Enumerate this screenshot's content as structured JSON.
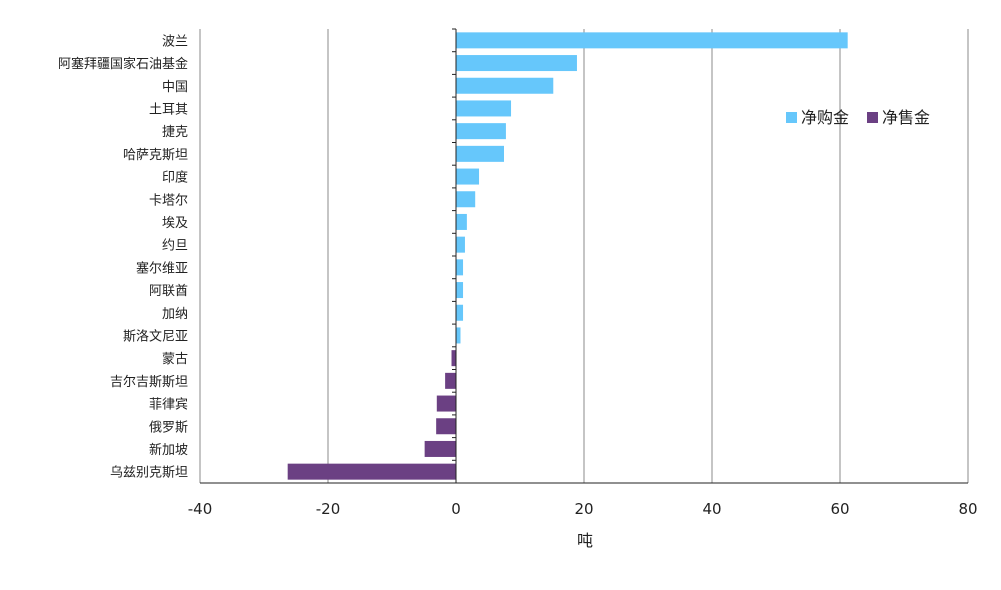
{
  "chart_data": {
    "type": "bar",
    "orientation": "horizontal",
    "categories": [
      "波兰",
      "阿塞拜疆国家石油基金",
      "中国",
      "土耳其",
      "捷克",
      "哈萨克斯坦",
      "印度",
      "卡塔尔",
      "埃及",
      "约旦",
      "塞尔维亚",
      "阿联酋",
      "加纳",
      "斯洛文尼亚",
      "蒙古",
      "吉尔吉斯斯坦",
      "菲律宾",
      "俄罗斯",
      "新加坡",
      "乌兹别克斯坦"
    ],
    "values": [
      61.2,
      18.9,
      15.2,
      8.6,
      7.8,
      7.5,
      3.6,
      3.0,
      1.7,
      1.4,
      1.1,
      1.1,
      1.1,
      0.7,
      -0.7,
      -1.7,
      -3.0,
      -3.1,
      -4.9,
      -26.3
    ],
    "series": [
      {
        "name": "净购金",
        "color": "#66c7fb"
      },
      {
        "name": "净售金",
        "color": "#6b4083"
      }
    ],
    "xlabel": "吨",
    "xlim": [
      -40,
      80
    ],
    "xticks": [
      "-40",
      "-20",
      "0",
      "20",
      "40",
      "60",
      "80"
    ],
    "grid": "vertical",
    "legend_position": "right"
  }
}
